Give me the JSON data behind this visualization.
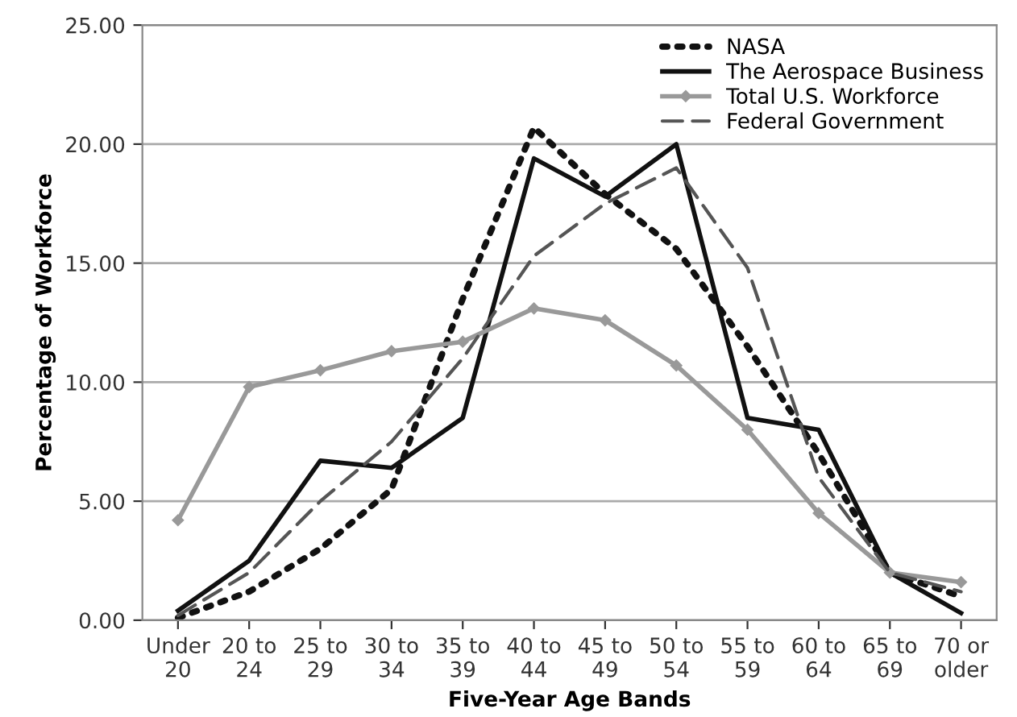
{
  "chart_data": {
    "type": "line",
    "xlabel": "Five-Year Age Bands",
    "ylabel": "Percentage of Workforce",
    "categories": [
      "Under\n20",
      "20 to\n24",
      "25 to\n29",
      "30 to\n34",
      "35 to\n39",
      "40 to\n44",
      "45 to\n49",
      "50 to\n54",
      "55 to\n59",
      "60 to\n64",
      "65 to\n69",
      "70 or\nolder"
    ],
    "series": [
      {
        "name": "NASA",
        "color": "#111111",
        "line_style": "dotted",
        "marker": "none",
        "values": [
          0.1,
          1.2,
          3.0,
          5.5,
          13.5,
          20.7,
          17.9,
          15.6,
          11.5,
          7.0,
          2.0,
          1.0
        ]
      },
      {
        "name": "The Aerospace Business",
        "color": "#111111",
        "line_style": "solid",
        "marker": "none",
        "values": [
          0.4,
          2.5,
          6.7,
          6.4,
          8.5,
          19.4,
          17.8,
          20.0,
          8.5,
          8.0,
          2.0,
          0.3
        ]
      },
      {
        "name": "Total U.S. Workforce",
        "color": "#999999",
        "line_style": "solid",
        "marker": "diamond",
        "values": [
          4.2,
          9.8,
          10.5,
          11.3,
          11.7,
          13.1,
          12.6,
          10.7,
          8.0,
          4.5,
          2.0,
          1.6
        ]
      },
      {
        "name": "Federal Government",
        "color": "#555555",
        "line_style": "dashed",
        "marker": "none",
        "values": [
          0.2,
          2.0,
          5.0,
          7.5,
          11.0,
          15.3,
          17.5,
          19.0,
          14.8,
          6.0,
          2.0,
          1.2
        ]
      }
    ],
    "ylim": [
      0,
      25
    ],
    "yticks": [
      {
        "value": 0,
        "label": "0.00"
      },
      {
        "value": 5,
        "label": "5.00"
      },
      {
        "value": 10,
        "label": "10.00"
      },
      {
        "value": 15,
        "label": "15.00"
      },
      {
        "value": 20,
        "label": "20.00"
      },
      {
        "value": 25,
        "label": "25.00"
      }
    ],
    "grid": "y",
    "legend": "top right"
  }
}
